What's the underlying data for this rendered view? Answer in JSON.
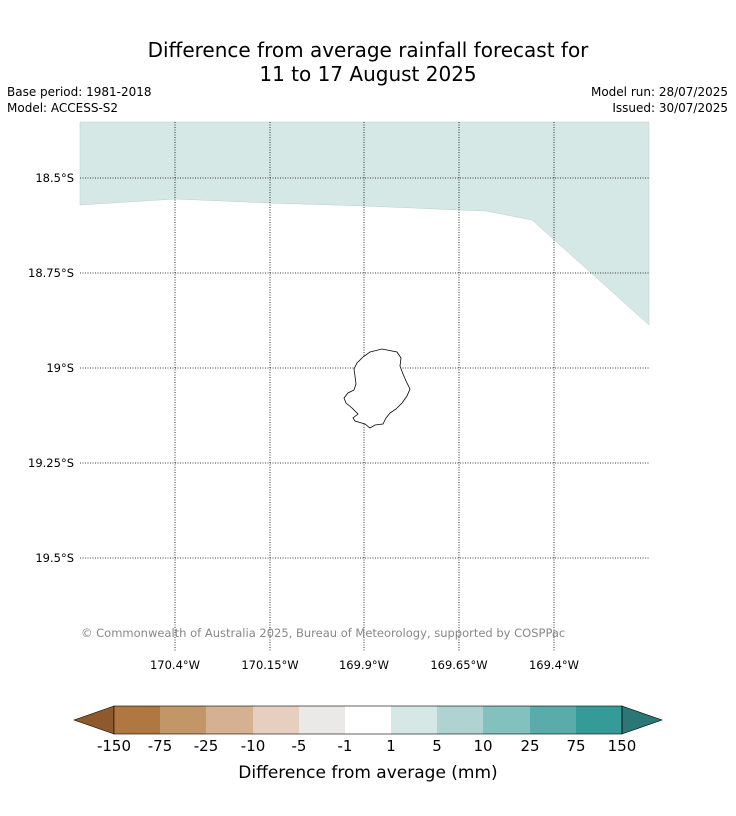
{
  "title": {
    "line1": "Difference from average rainfall forecast for",
    "line2": "11 to 17 August 2025"
  },
  "meta": {
    "base_period": "Base period: 1981-2018",
    "model": "Model: ACCESS-S2",
    "model_run": "Model run: 28/07/2025",
    "issued": "Issued: 30/07/2025"
  },
  "map": {
    "lat_labels": [
      "18.5°S",
      "18.75°S",
      "19°S",
      "19.25°S",
      "19.5°S"
    ],
    "lon_labels": [
      "170.4°W",
      "170.15°W",
      "169.9°W",
      "169.65°W",
      "169.4°W"
    ],
    "copyright": "© Commonwealth of Australia 2025, Bureau of Meteorology, supported by COSPPac",
    "shaded_category": "1 to 5",
    "shaded_color": "#d5e8e6",
    "island_outline_color": "#000000"
  },
  "colorbar": {
    "title": "Difference from average (mm)",
    "tick_labels": [
      "-150",
      "-75",
      "-25",
      "-10",
      "-5",
      "-1",
      "1",
      "5",
      "10",
      "25",
      "75",
      "150"
    ],
    "colors": [
      "#8e5a2b",
      "#b07840",
      "#c29666",
      "#d4b190",
      "#e6cfbf",
      "#ebe9e7",
      "#ffffff",
      "#d5e8e6",
      "#afd3d1",
      "#83c1bf",
      "#5aacaa",
      "#359b98",
      "#2a7776"
    ]
  }
}
